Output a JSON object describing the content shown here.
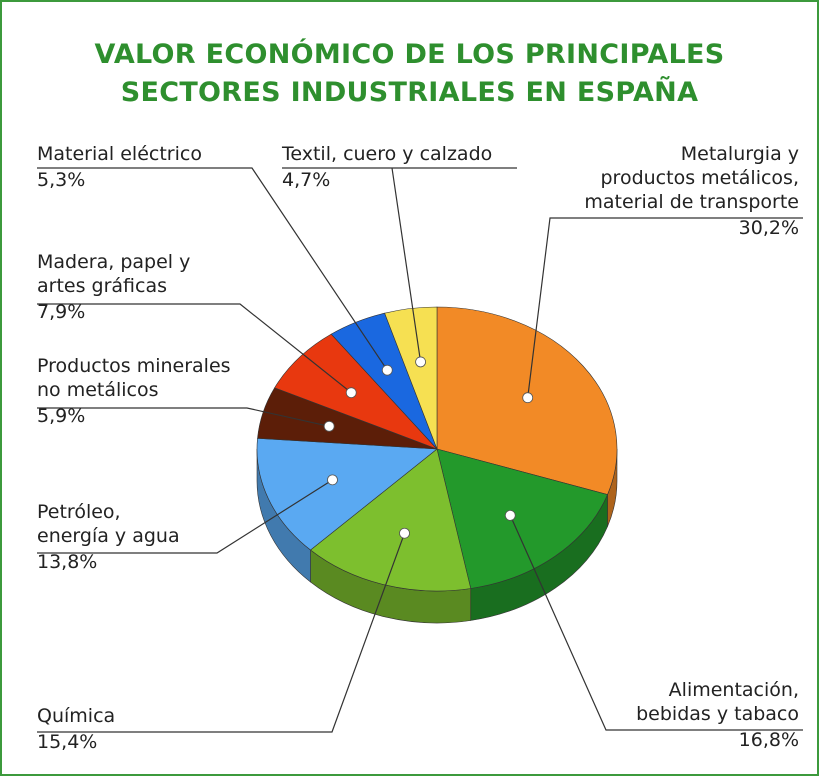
{
  "chart_data": {
    "type": "pie",
    "title": "VALOR ECONÓMICO DE LOS PRINCIPALES\nSECTORES INDUSTRIALES EN ESPAÑA",
    "categories": [
      "Metalurgia y\nproductos metálicos,\nmaterial de transporte",
      "Alimentación,\nbebidas y tabaco",
      "Química",
      "Petróleo,\nenergía y agua",
      "Productos minerales\nno metálicos",
      "Madera, papel y\nartes gráficas",
      "Material eléctrico",
      "Textil, cuero y calzado"
    ],
    "values": [
      30.2,
      16.8,
      15.4,
      13.8,
      5.9,
      7.9,
      5.3,
      4.7
    ],
    "value_labels": [
      "30,2%",
      "16,8%",
      "15,4%",
      "13,8%",
      "5,9%",
      "7,9%",
      "5,3%",
      "4,7%"
    ],
    "colors": [
      "#f28a26",
      "#23992b",
      "#7dbf2e",
      "#5aa9f2",
      "#5c1e08",
      "#e8380f",
      "#1a68e0",
      "#f6e052"
    ]
  }
}
